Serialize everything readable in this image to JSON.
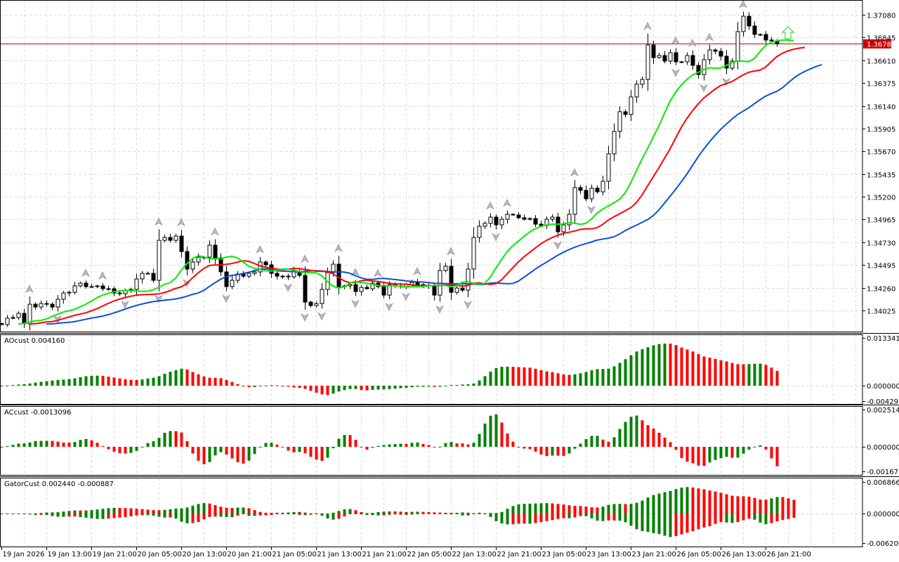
{
  "chart_data": {
    "type": "candlestick",
    "symbol_timeframe": "H1",
    "price_axis": {
      "ticks": [
        "1.37080",
        "1.36845",
        "1.36610",
        "1.36375",
        "1.36140",
        "1.35905",
        "1.35670",
        "1.35435",
        "1.35200",
        "1.34965",
        "1.34730",
        "1.34495",
        "1.34260",
        "1.34025"
      ],
      "ylim": [
        1.3383,
        1.3731
      ]
    },
    "current_price": {
      "value": 1.3678,
      "label": "1.36780",
      "color": "#cc0000"
    },
    "time_axis": [
      "19 Jan 2026",
      "19 Jan 13:00",
      "19 Jan 21:00",
      "20 Jan 05:00",
      "20 Jan 13:00",
      "20 Jan 21:00",
      "21 Jan 05:00",
      "21 Jan 13:00",
      "21 Jan 21:00",
      "22 Jan 05:00",
      "22 Jan 13:00",
      "22 Jan 21:00",
      "23 Jan 05:00",
      "23 Jan 13:00",
      "23 Jan 21:00",
      "26 Jan 05:00",
      "26 Jan 13:00",
      "26 Jan 21:00"
    ],
    "closes": [
      1.3388,
      1.33945,
      1.33952,
      1.33996,
      1.33887,
      1.3409,
      1.34061,
      1.34097,
      1.3409,
      1.34061,
      1.34141,
      1.34206,
      1.34213,
      1.34279,
      1.34308,
      1.34272,
      1.34272,
      1.34279,
      1.3425,
      1.3425,
      1.34206,
      1.34199,
      1.34235,
      1.34243,
      1.34351,
      1.34409,
      1.34409,
      1.34337,
      1.3475,
      1.3478,
      1.3475,
      1.34794,
      1.34634,
      1.34453,
      1.34526,
      1.34576,
      1.34576,
      1.347,
      1.34569,
      1.34424,
      1.34272,
      1.34337,
      1.34402,
      1.3438,
      1.34409,
      1.34424,
      1.34526,
      1.34497,
      1.34409,
      1.3438,
      1.3438,
      1.34373,
      1.34431,
      1.34388,
      1.34112,
      1.34076,
      1.34097,
      1.34243,
      1.34417,
      1.34504,
      1.34272,
      1.34279,
      1.34293,
      1.34221,
      1.34264,
      1.3425,
      1.34308,
      1.34272,
      1.34184,
      1.34293,
      1.34279,
      1.34272,
      1.34293,
      1.34315,
      1.34293,
      1.34286,
      1.34279,
      1.34184,
      1.34438,
      1.34482,
      1.34213,
      1.34257,
      1.34235,
      1.34453,
      1.3478,
      1.34896,
      1.34925,
      1.3499,
      1.3491,
      1.34968,
      1.35019,
      1.35012,
      1.34983,
      1.34968,
      1.34975,
      1.34917,
      1.34903,
      1.34968,
      1.3499,
      1.34838,
      1.3491,
      1.35019,
      1.35295,
      1.35266,
      1.35179,
      1.35288,
      1.35251,
      1.3536,
      1.35643,
      1.35875,
      1.36079,
      1.3605,
      1.36231,
      1.36362,
      1.36412,
      1.36768,
      1.36637,
      1.36659,
      1.36601,
      1.36688,
      1.36594,
      1.36594,
      1.36659,
      1.36557,
      1.36463,
      1.36616,
      1.36717,
      1.36703,
      1.36652,
      1.36528,
      1.36601,
      1.36906,
      1.37065,
      1.36964,
      1.36877,
      1.36877,
      1.36819,
      1.36811,
      1.3678
    ],
    "overlays": [
      {
        "name": "Alligator Jaw",
        "period": 13,
        "shift": 8,
        "color": "#0b4fd8"
      },
      {
        "name": "Alligator Teeth",
        "period": 8,
        "shift": 5,
        "color": "#ff0000"
      },
      {
        "name": "Alligator Lips",
        "period": 5,
        "shift": 3,
        "color": "#00ee00"
      }
    ],
    "colors": {
      "bull": "#ffffff",
      "bear": "#000000",
      "up_bar": "#008000",
      "down_bar": "#ff0000",
      "fractal": "#a0a0a0",
      "signal_arrow": "#66dd66"
    },
    "indicators": {
      "ao": {
        "label": "AOcust 0.004160",
        "ticks": [
          "0.013341",
          "0.000000",
          "-0.004297"
        ],
        "ylim": [
          -0.004297,
          0.013341
        ]
      },
      "ac": {
        "label": "ACcust -0.0013096",
        "ticks": [
          "0.0025149",
          "0.0000000",
          "-0.0016730"
        ],
        "ylim": [
          -0.001673,
          0.0025149
        ]
      },
      "gator": {
        "label": "GatorCust 0.002440 -0.000887",
        "ticks": [
          "0.006866",
          "0.000000",
          "-0.006200"
        ],
        "ylim": [
          -0.0062,
          0.006866
        ]
      }
    }
  }
}
